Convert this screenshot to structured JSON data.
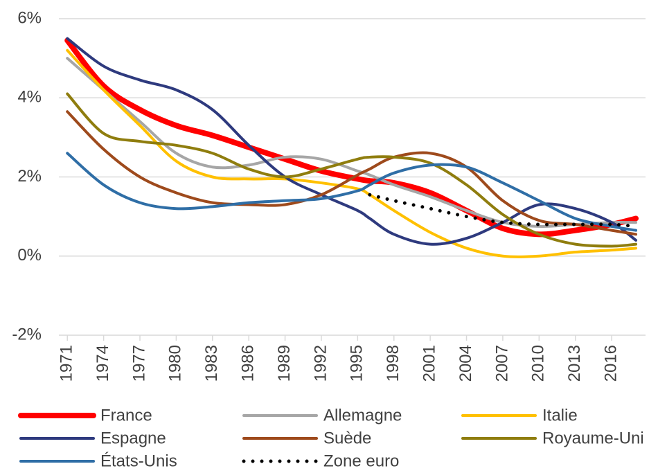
{
  "chart_data": {
    "type": "line",
    "x": [
      1971,
      1974,
      1977,
      1980,
      1983,
      1986,
      1989,
      1992,
      1995,
      1996,
      1998,
      2001,
      2004,
      2007,
      2010,
      2013,
      2016,
      2018
    ],
    "xlim": [
      1970.3,
      2018.8
    ],
    "xticks": [
      1971,
      1974,
      1977,
      1980,
      1983,
      1986,
      1989,
      1992,
      1995,
      1998,
      2001,
      2004,
      2007,
      2010,
      2013,
      2016
    ],
    "ylim": [
      -2,
      6
    ],
    "yticks": [
      {
        "value": -2,
        "label": "-2%"
      },
      {
        "value": 0,
        "label": "0%"
      },
      {
        "value": 2,
        "label": "2%"
      },
      {
        "value": 4,
        "label": "4%"
      },
      {
        "value": 6,
        "label": "6%"
      }
    ],
    "grid": true,
    "legend": "bottom",
    "series": [
      {
        "name": "France",
        "color": "#ff0000",
        "line_width": 8,
        "values": [
          5.45,
          4.3,
          3.7,
          3.3,
          3.05,
          2.75,
          2.45,
          2.15,
          1.95,
          1.9,
          1.85,
          1.6,
          1.15,
          0.7,
          0.55,
          0.65,
          0.8,
          0.95
        ]
      },
      {
        "name": "Allemagne",
        "color": "#a6a6a6",
        "line_width": 4,
        "values": [
          5.0,
          4.2,
          3.4,
          2.6,
          2.25,
          2.3,
          2.5,
          2.45,
          2.15,
          2.05,
          1.8,
          1.5,
          1.15,
          0.85,
          0.75,
          0.8,
          0.85,
          0.85
        ]
      },
      {
        "name": "Italie",
        "color": "#ffc000",
        "line_width": 4,
        "values": [
          5.2,
          4.2,
          3.3,
          2.4,
          2.0,
          1.95,
          1.95,
          1.85,
          1.7,
          1.55,
          1.15,
          0.6,
          0.2,
          0.0,
          0.0,
          0.1,
          0.15,
          0.2
        ]
      },
      {
        "name": "Espagne",
        "color": "#2e3a7e",
        "line_width": 4,
        "values": [
          5.5,
          4.8,
          4.45,
          4.2,
          3.7,
          2.8,
          2.0,
          1.55,
          1.15,
          0.95,
          0.55,
          0.3,
          0.45,
          0.85,
          1.3,
          1.2,
          0.85,
          0.4
        ]
      },
      {
        "name": "Suède",
        "color": "#9e4a1c",
        "line_width": 4,
        "values": [
          3.65,
          2.7,
          2.0,
          1.6,
          1.35,
          1.3,
          1.3,
          1.55,
          2.05,
          2.2,
          2.5,
          2.6,
          2.25,
          1.4,
          0.9,
          0.8,
          0.65,
          0.55
        ]
      },
      {
        "name": "Royaume-Uni",
        "color": "#8f7d0e",
        "line_width": 4,
        "values": [
          4.1,
          3.1,
          2.9,
          2.8,
          2.6,
          2.2,
          2.0,
          2.2,
          2.45,
          2.5,
          2.5,
          2.35,
          1.8,
          1.05,
          0.55,
          0.3,
          0.25,
          0.3
        ]
      },
      {
        "name": "États-Unis",
        "color": "#2f6ea6",
        "line_width": 4,
        "values": [
          2.6,
          1.8,
          1.35,
          1.2,
          1.25,
          1.35,
          1.4,
          1.45,
          1.65,
          1.8,
          2.1,
          2.3,
          2.25,
          1.85,
          1.4,
          0.95,
          0.75,
          0.65
        ]
      },
      {
        "name": "Zone euro",
        "color": "#000000",
        "line_width": 5,
        "line_style": "dotted",
        "values": [
          null,
          null,
          null,
          null,
          null,
          null,
          null,
          null,
          null,
          1.55,
          1.4,
          1.2,
          1.0,
          0.85,
          0.8,
          0.8,
          0.8,
          0.75
        ]
      }
    ]
  }
}
